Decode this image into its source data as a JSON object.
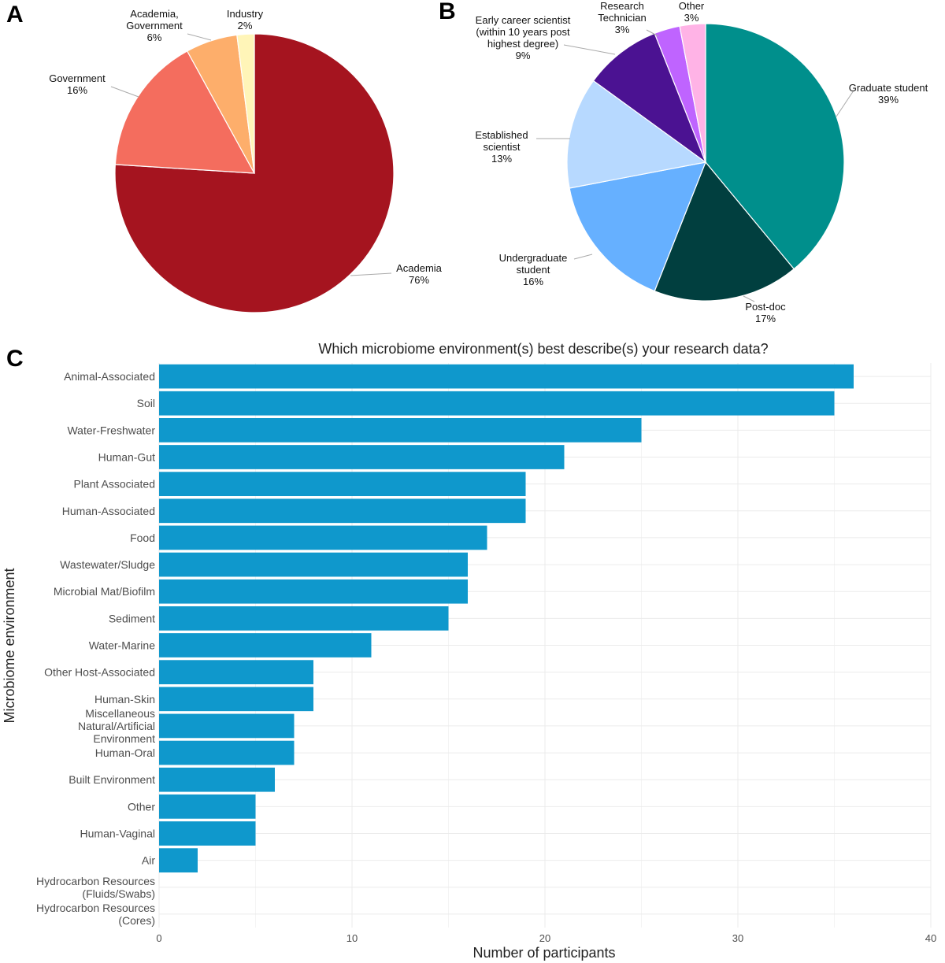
{
  "panels": [
    "A",
    "B",
    "C"
  ],
  "chart_data": [
    {
      "type": "pie",
      "panel": "A",
      "title": "",
      "slices": [
        {
          "label": [
            "Academia"
          ],
          "pct_label": "76%",
          "value": 76,
          "color": "#a5141f"
        },
        {
          "label": [
            "Government"
          ],
          "pct_label": "16%",
          "value": 16,
          "color": "#f46d5e"
        },
        {
          "label": [
            "Academia,",
            "Government"
          ],
          "pct_label": "6%",
          "value": 6,
          "color": "#fdae6b"
        },
        {
          "label": [
            "Industry"
          ],
          "pct_label": "2%",
          "value": 2,
          "color": "#fff5b8"
        }
      ]
    },
    {
      "type": "pie",
      "panel": "B",
      "title": "",
      "slices": [
        {
          "label": [
            "Graduate student"
          ],
          "pct_label": "39%",
          "value": 39,
          "color": "#008f8c"
        },
        {
          "label": [
            "Post-doc"
          ],
          "pct_label": "17%",
          "value": 17,
          "color": "#013f3f"
        },
        {
          "label": [
            "Undergraduate",
            "student"
          ],
          "pct_label": "16%",
          "value": 16,
          "color": "#66b0ff"
        },
        {
          "label": [
            "Established",
            "scientist"
          ],
          "pct_label": "13%",
          "value": 13,
          "color": "#b7d9ff"
        },
        {
          "label": [
            "Early career scientist",
            "(within 10 years post",
            "highest degree)"
          ],
          "pct_label": "9%",
          "value": 9,
          "color": "#4b1292"
        },
        {
          "label": [
            "Research",
            "Technician"
          ],
          "pct_label": "3%",
          "value": 3,
          "color": "#bf64ff"
        },
        {
          "label": [
            "Other"
          ],
          "pct_label": "3%",
          "value": 3,
          "color": "#ffb3e6"
        }
      ]
    },
    {
      "type": "bar",
      "orientation": "horizontal",
      "panel": "C",
      "title": "Which microbiome environment(s) best describe(s) your research data?",
      "xlabel": "Number of participants",
      "ylabel": "Microbiome environment",
      "xlim": [
        0,
        40
      ],
      "xticks": [
        0,
        10,
        20,
        30,
        40
      ],
      "bar_color": "#0f98cc",
      "grid": true,
      "categories": [
        [
          "Animal-Associated"
        ],
        [
          "Soil"
        ],
        [
          "Water-Freshwater"
        ],
        [
          "Human-Gut"
        ],
        [
          "Plant Associated"
        ],
        [
          "Human-Associated"
        ],
        [
          "Food"
        ],
        [
          "Wastewater/Sludge"
        ],
        [
          "Microbial Mat/Biofilm"
        ],
        [
          "Sediment"
        ],
        [
          "Water-Marine"
        ],
        [
          "Other Host-Associated"
        ],
        [
          "Human-Skin"
        ],
        [
          "Miscellaneous",
          "Natural/Artificial",
          "Environment"
        ],
        [
          "Human-Oral"
        ],
        [
          "Built Environment"
        ],
        [
          "Other"
        ],
        [
          "Human-Vaginal"
        ],
        [
          "Air"
        ],
        [
          "Hydrocarbon Resources",
          "(Fluids/Swabs)"
        ],
        [
          "Hydrocarbon Resources",
          "(Cores)"
        ]
      ],
      "values": [
        36,
        35,
        25,
        21,
        19,
        19,
        17,
        16,
        16,
        15,
        11,
        8,
        8,
        7,
        7,
        6,
        5,
        5,
        2,
        0,
        0
      ]
    }
  ]
}
